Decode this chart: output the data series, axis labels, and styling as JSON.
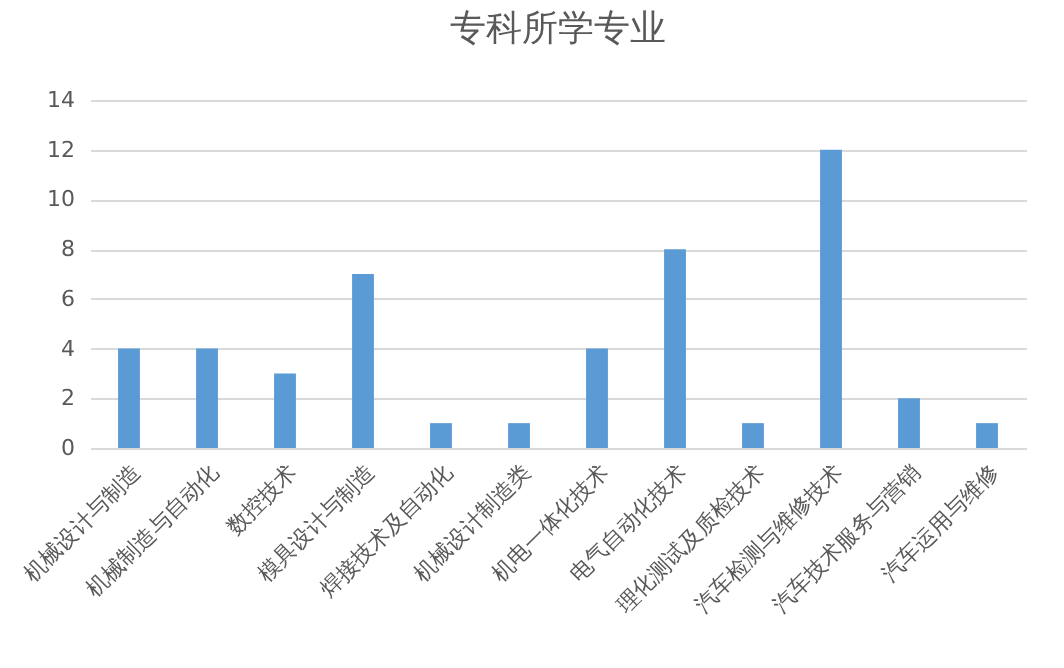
{
  "chart_data": {
    "type": "bar",
    "title": "专科所学专业",
    "categories": [
      "机械设计与制造",
      "机械制造与自动化",
      "数控技术",
      "模具设计与制造",
      "焊接技术及自动化",
      "机械设计制造类",
      "机电一体化技术",
      "电气自动化技术",
      "理化测试及质检技术",
      "汽车检测与维修技术",
      "汽车技术服务与营销",
      "汽车运用与维修"
    ],
    "values": [
      4,
      4,
      3,
      7,
      1,
      1,
      4,
      8,
      1,
      12,
      2,
      1
    ],
    "color": "#5b9bd5",
    "ylim": [
      0,
      14
    ],
    "yticks": [
      0,
      2,
      4,
      6,
      8,
      10,
      12,
      14
    ],
    "grid": "y"
  }
}
